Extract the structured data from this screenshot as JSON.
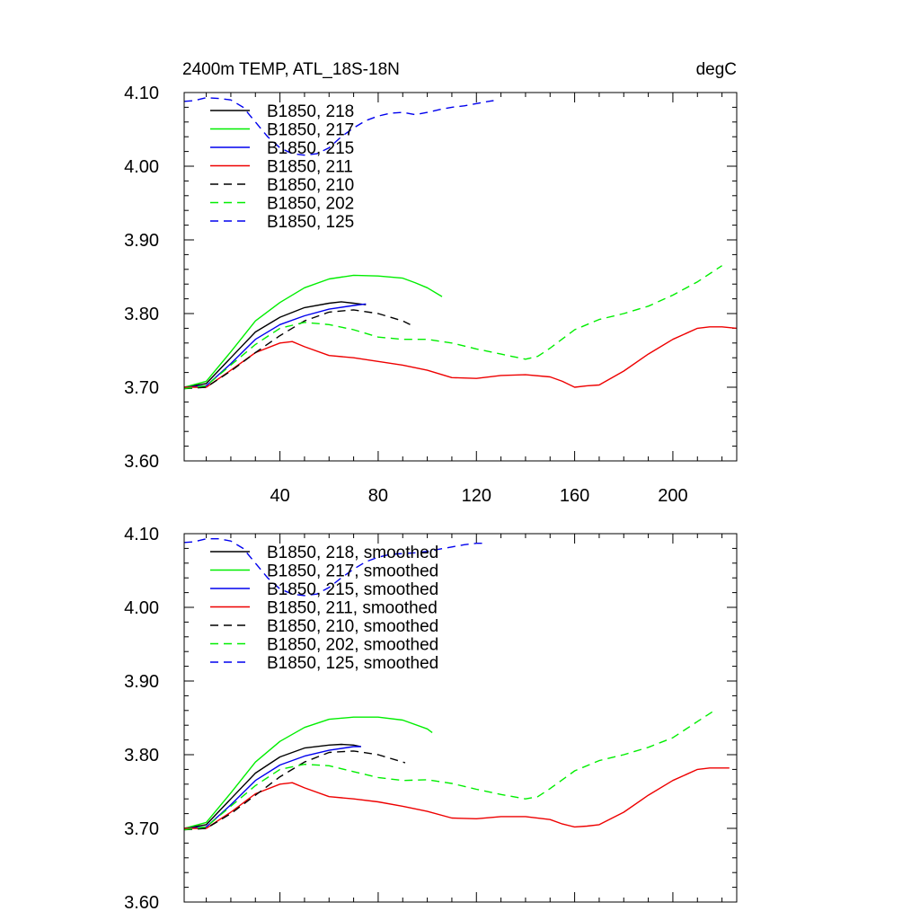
{
  "chart_data": [
    {
      "type": "line",
      "title_left": "2400m TEMP, ATL_18S-18N",
      "title_right": "degC",
      "xlim": [
        1,
        226
      ],
      "ylim": [
        3.6,
        4.1
      ],
      "xticks": [
        40,
        80,
        120,
        160,
        200
      ],
      "xtick_labels": [
        "40",
        "80",
        "120",
        "160",
        "200"
      ],
      "yticks": [
        3.6,
        3.7,
        3.8,
        3.9,
        4.0,
        4.1
      ],
      "ytick_labels": [
        "3.60",
        "3.70",
        "3.80",
        "3.90",
        "4.00",
        "4.10"
      ],
      "legend_position": "top-left",
      "series": [
        {
          "name": "B1850, 218",
          "color": "#000000",
          "dash": "solid",
          "x": [
            1,
            10,
            20,
            30,
            40,
            50,
            60,
            65,
            70,
            75
          ],
          "y": [
            3.7,
            3.705,
            3.74,
            3.775,
            3.795,
            3.808,
            3.814,
            3.816,
            3.814,
            3.812
          ]
        },
        {
          "name": "B1850, 217",
          "color": "#00ee00",
          "dash": "solid",
          "x": [
            1,
            10,
            20,
            30,
            40,
            50,
            60,
            70,
            80,
            90,
            95,
            100,
            106
          ],
          "y": [
            3.7,
            3.708,
            3.748,
            3.79,
            3.815,
            3.835,
            3.847,
            3.852,
            3.851,
            3.848,
            3.842,
            3.835,
            3.823
          ]
        },
        {
          "name": "B1850, 215",
          "color": "#0000ee",
          "dash": "solid",
          "x": [
            1,
            10,
            20,
            30,
            40,
            50,
            60,
            70,
            75
          ],
          "y": [
            3.7,
            3.702,
            3.732,
            3.765,
            3.785,
            3.797,
            3.806,
            3.811,
            3.813
          ]
        },
        {
          "name": "B1850, 211",
          "color": "#ee0000",
          "dash": "solid",
          "x": [
            1,
            10,
            20,
            30,
            40,
            45,
            50,
            60,
            70,
            80,
            90,
            100,
            110,
            120,
            130,
            140,
            150,
            155,
            160,
            165,
            170,
            180,
            190,
            200,
            210,
            215,
            220,
            226
          ],
          "y": [
            3.7,
            3.7,
            3.723,
            3.747,
            3.76,
            3.762,
            3.755,
            3.743,
            3.74,
            3.735,
            3.73,
            3.723,
            3.713,
            3.712,
            3.716,
            3.717,
            3.714,
            3.708,
            3.7,
            3.702,
            3.703,
            3.722,
            3.745,
            3.765,
            3.78,
            3.782,
            3.782,
            3.78
          ]
        },
        {
          "name": "B1850, 210",
          "color": "#000000",
          "dash": "dashed",
          "x": [
            1,
            10,
            20,
            30,
            40,
            50,
            60,
            70,
            80,
            90,
            93
          ],
          "y": [
            3.698,
            3.7,
            3.722,
            3.747,
            3.77,
            3.79,
            3.802,
            3.805,
            3.8,
            3.79,
            3.785
          ]
        },
        {
          "name": "B1850, 202",
          "color": "#00ee00",
          "dash": "dashed",
          "x": [
            1,
            10,
            20,
            30,
            40,
            50,
            60,
            70,
            80,
            90,
            100,
            110,
            120,
            130,
            140,
            145,
            150,
            160,
            170,
            180,
            190,
            200,
            210,
            220
          ],
          "y": [
            3.698,
            3.702,
            3.73,
            3.758,
            3.78,
            3.788,
            3.785,
            3.778,
            3.768,
            3.765,
            3.765,
            3.76,
            3.752,
            3.745,
            3.738,
            3.742,
            3.753,
            3.778,
            3.792,
            3.8,
            3.81,
            3.825,
            3.843,
            3.865
          ]
        },
        {
          "name": "B1850, 125",
          "color": "#0000ee",
          "dash": "dashed",
          "x": [
            1,
            5,
            10,
            15,
            20,
            25,
            30,
            35,
            40,
            45,
            50,
            55,
            60,
            65,
            70,
            75,
            80,
            85,
            90,
            95,
            100,
            105,
            110,
            115,
            120,
            125,
            127
          ],
          "y": [
            4.088,
            4.089,
            4.093,
            4.092,
            4.09,
            4.08,
            4.06,
            4.04,
            4.025,
            4.017,
            4.015,
            4.017,
            4.025,
            4.04,
            4.052,
            4.062,
            4.068,
            4.072,
            4.073,
            4.07,
            4.073,
            4.077,
            4.08,
            4.082,
            4.085,
            4.088,
            4.089
          ]
        }
      ]
    },
    {
      "type": "line",
      "xlim": [
        1,
        226
      ],
      "ylim": [
        3.6,
        4.1
      ],
      "xticks": [
        40,
        80,
        120,
        160,
        200
      ],
      "yticks": [
        3.6,
        3.7,
        3.8,
        3.9,
        4.0,
        4.1
      ],
      "ytick_labels": [
        "3.60",
        "3.70",
        "3.80",
        "3.90",
        "4.00",
        "4.10"
      ],
      "legend_position": "top-left",
      "series": [
        {
          "name": "B1850, 218, smoothed",
          "color": "#000000",
          "dash": "solid",
          "x": [
            1,
            10,
            20,
            30,
            40,
            50,
            60,
            65,
            70,
            73
          ],
          "y": [
            3.7,
            3.705,
            3.74,
            3.775,
            3.797,
            3.809,
            3.813,
            3.814,
            3.813,
            3.811
          ]
        },
        {
          "name": "B1850, 217, smoothed",
          "color": "#00ee00",
          "dash": "solid",
          "x": [
            1,
            10,
            20,
            30,
            40,
            50,
            60,
            70,
            80,
            90,
            100,
            102
          ],
          "y": [
            3.7,
            3.708,
            3.748,
            3.79,
            3.818,
            3.837,
            3.848,
            3.851,
            3.851,
            3.847,
            3.835,
            3.83
          ]
        },
        {
          "name": "B1850, 215, smoothed",
          "color": "#0000ee",
          "dash": "solid",
          "x": [
            1,
            10,
            20,
            30,
            40,
            50,
            60,
            70,
            73
          ],
          "y": [
            3.7,
            3.702,
            3.732,
            3.765,
            3.786,
            3.798,
            3.806,
            3.811,
            3.811
          ]
        },
        {
          "name": "B1850, 211, smoothed",
          "color": "#ee0000",
          "dash": "solid",
          "x": [
            1,
            10,
            20,
            30,
            40,
            45,
            50,
            60,
            70,
            80,
            90,
            100,
            110,
            120,
            130,
            140,
            150,
            155,
            160,
            165,
            170,
            180,
            190,
            200,
            210,
            215,
            220,
            223
          ],
          "y": [
            3.7,
            3.7,
            3.722,
            3.747,
            3.76,
            3.762,
            3.755,
            3.743,
            3.74,
            3.736,
            3.73,
            3.723,
            3.714,
            3.713,
            3.716,
            3.716,
            3.712,
            3.706,
            3.702,
            3.703,
            3.705,
            3.722,
            3.745,
            3.765,
            3.78,
            3.782,
            3.782,
            3.782
          ]
        },
        {
          "name": "B1850, 210, smoothed",
          "color": "#000000",
          "dash": "dashed",
          "x": [
            1,
            10,
            20,
            30,
            40,
            50,
            60,
            70,
            80,
            90,
            91
          ],
          "y": [
            3.698,
            3.7,
            3.72,
            3.745,
            3.77,
            3.79,
            3.803,
            3.805,
            3.8,
            3.79,
            3.789
          ]
        },
        {
          "name": "B1850, 202, smoothed",
          "color": "#00ee00",
          "dash": "dashed",
          "x": [
            1,
            10,
            20,
            30,
            40,
            50,
            60,
            70,
            80,
            90,
            100,
            110,
            120,
            130,
            140,
            145,
            150,
            160,
            170,
            180,
            190,
            200,
            210,
            216
          ],
          "y": [
            3.698,
            3.702,
            3.73,
            3.758,
            3.78,
            3.787,
            3.785,
            3.777,
            3.769,
            3.765,
            3.766,
            3.761,
            3.753,
            3.746,
            3.74,
            3.743,
            3.754,
            3.778,
            3.792,
            3.8,
            3.81,
            3.823,
            3.845,
            3.858
          ]
        },
        {
          "name": "B1850, 125, smoothed",
          "color": "#0000ee",
          "dash": "dashed",
          "x": [
            1,
            5,
            10,
            15,
            20,
            25,
            30,
            35,
            40,
            45,
            50,
            55,
            60,
            65,
            70,
            75,
            80,
            85,
            90,
            95,
            100,
            105,
            110,
            115,
            120,
            124
          ],
          "y": [
            4.088,
            4.089,
            4.093,
            4.093,
            4.09,
            4.08,
            4.06,
            4.04,
            4.025,
            4.018,
            4.016,
            4.018,
            4.027,
            4.04,
            4.052,
            4.062,
            4.068,
            4.072,
            4.073,
            4.074,
            4.076,
            4.079,
            4.082,
            4.085,
            4.087,
            4.087
          ]
        }
      ]
    }
  ]
}
